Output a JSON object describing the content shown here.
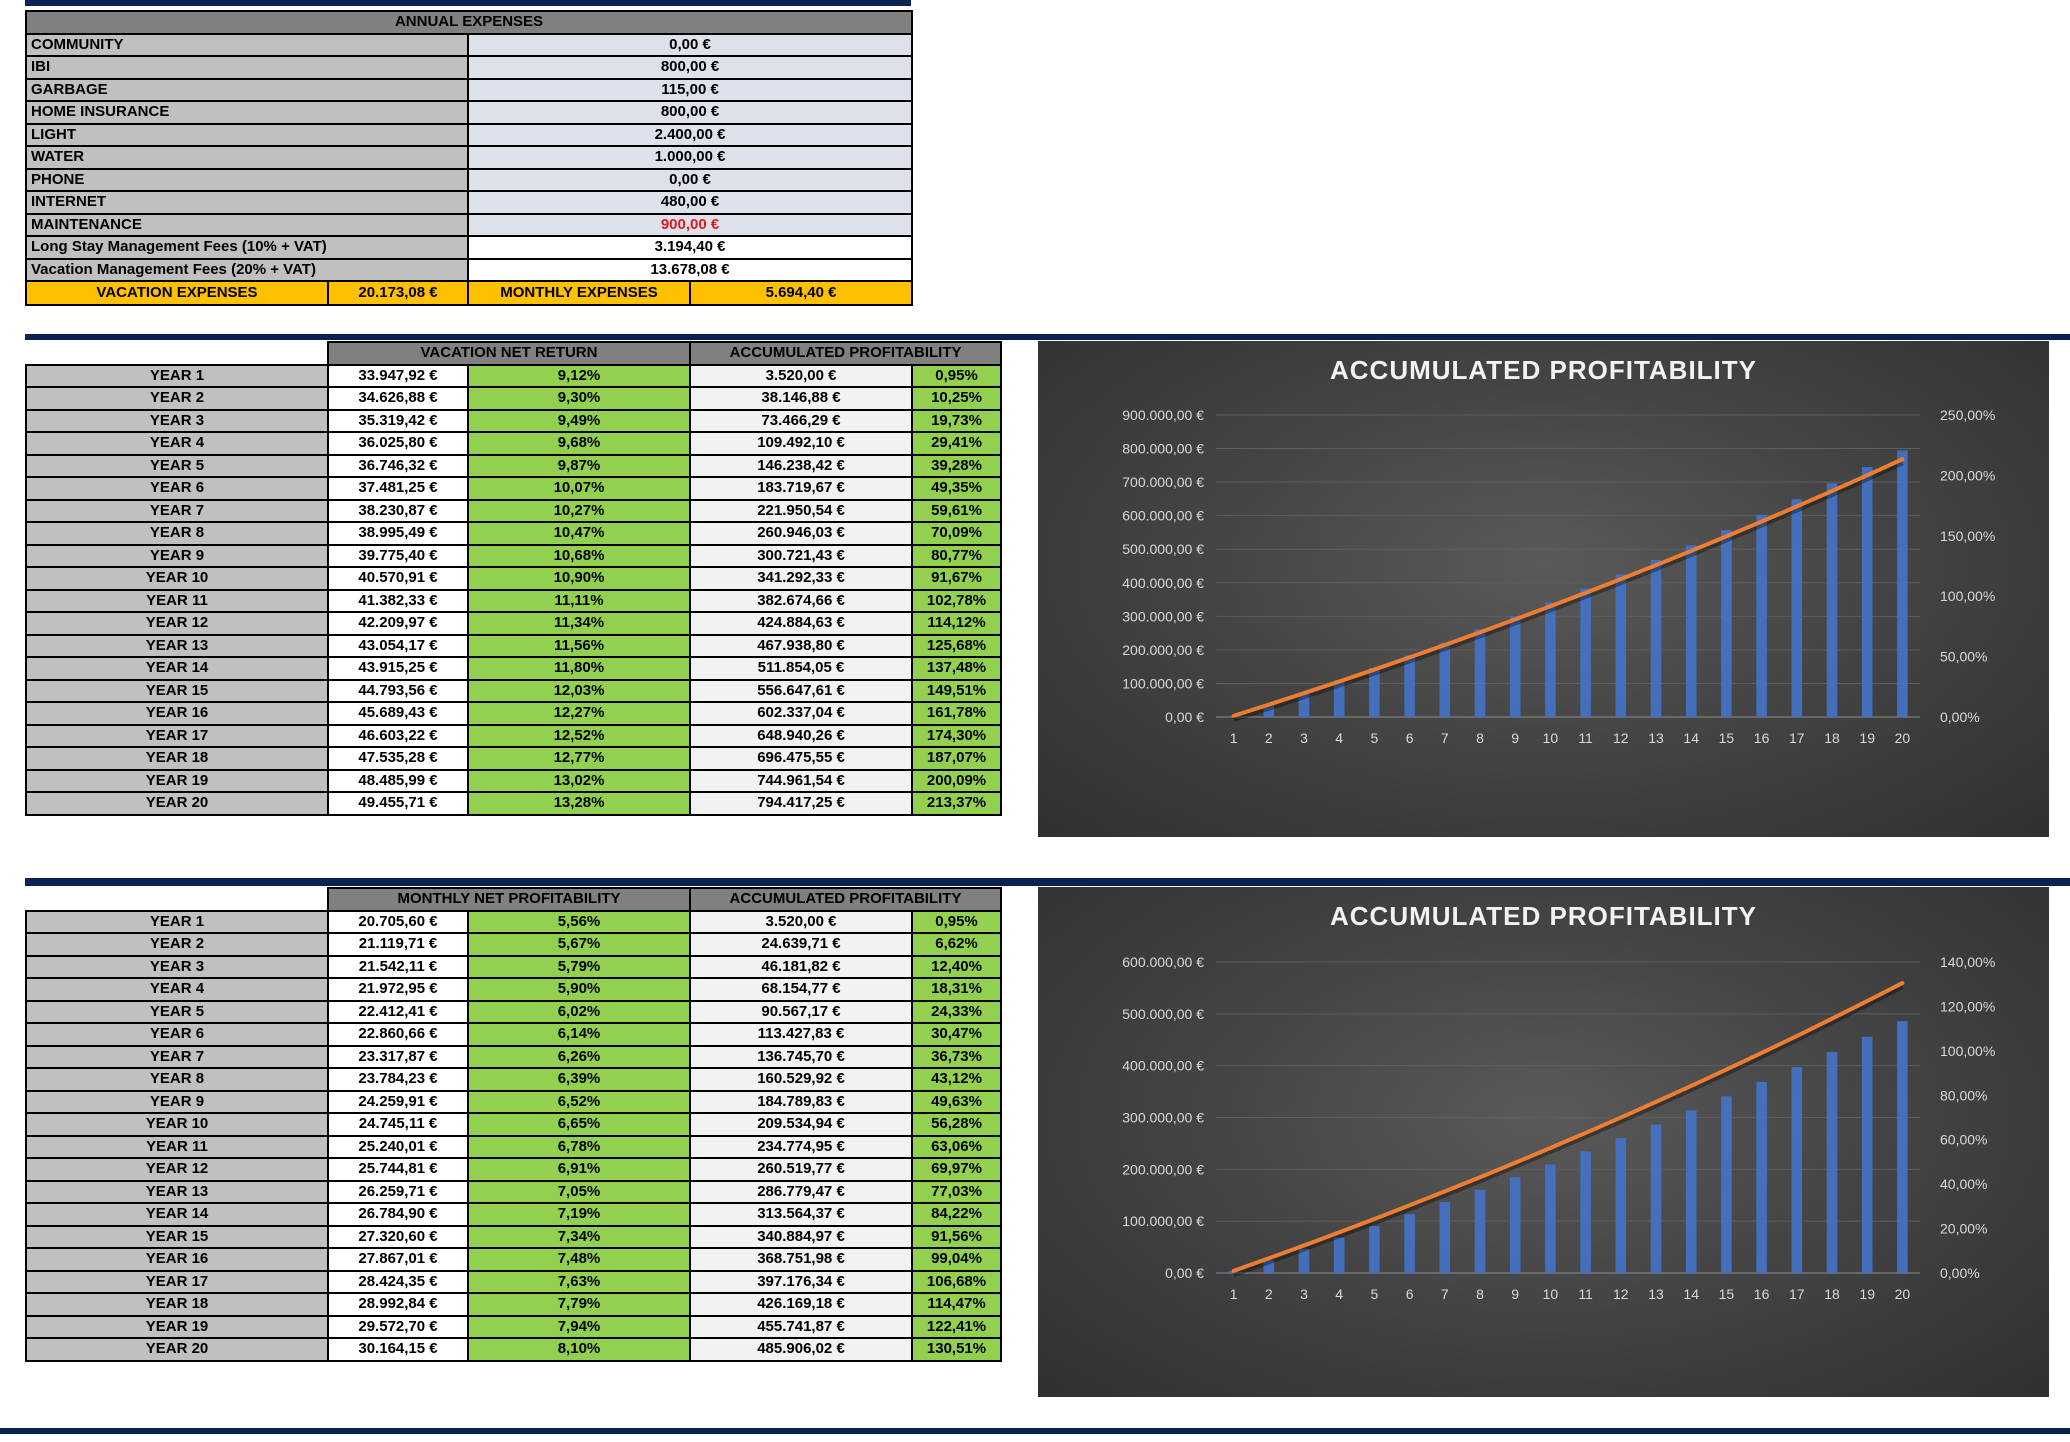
{
  "annual_expenses": {
    "title": "ANNUAL EXPENSES",
    "rows": [
      {
        "label": "COMMUNITY",
        "value": "0,00 €"
      },
      {
        "label": "IBI",
        "value": "800,00 €"
      },
      {
        "label": "GARBAGE",
        "value": "115,00 €"
      },
      {
        "label": "HOME INSURANCE",
        "value": "800,00 €"
      },
      {
        "label": "LIGHT",
        "value": "2.400,00 €"
      },
      {
        "label": "WATER",
        "value": "1.000,00 €"
      },
      {
        "label": "PHONE",
        "value": "0,00 €"
      },
      {
        "label": "INTERNET",
        "value": "480,00 €"
      },
      {
        "label": "MAINTENANCE",
        "value": "900,00 €",
        "color": "#e0191f"
      }
    ],
    "fees": [
      {
        "label": "Long Stay Management Fees (10% + VAT)",
        "value": "3.194,40 €"
      },
      {
        "label": "Vacation Management Fees (20% + VAT)",
        "value": "13.678,08 €"
      }
    ],
    "totals": {
      "vacation_label": "VACATION EXPENSES",
      "vacation_value": "20.173,08 €",
      "monthly_label": "MONTHLY EXPENSES",
      "monthly_value": "5.694,40 €"
    }
  },
  "vacation_table": {
    "header_return": "VACATION NET RETURN",
    "header_accum": "ACCUMULATED PROFITABILITY",
    "rows": [
      [
        "YEAR 1",
        "33.947,92 €",
        "9,12%",
        "3.520,00 €",
        "0,95%"
      ],
      [
        "YEAR 2",
        "34.626,88 €",
        "9,30%",
        "38.146,88 €",
        "10,25%"
      ],
      [
        "YEAR 3",
        "35.319,42 €",
        "9,49%",
        "73.466,29 €",
        "19,73%"
      ],
      [
        "YEAR 4",
        "36.025,80 €",
        "9,68%",
        "109.492,10 €",
        "29,41%"
      ],
      [
        "YEAR 5",
        "36.746,32 €",
        "9,87%",
        "146.238,42 €",
        "39,28%"
      ],
      [
        "YEAR 6",
        "37.481,25 €",
        "10,07%",
        "183.719,67 €",
        "49,35%"
      ],
      [
        "YEAR 7",
        "38.230,87 €",
        "10,27%",
        "221.950,54 €",
        "59,61%"
      ],
      [
        "YEAR 8",
        "38.995,49 €",
        "10,47%",
        "260.946,03 €",
        "70,09%"
      ],
      [
        "YEAR 9",
        "39.775,40 €",
        "10,68%",
        "300.721,43 €",
        "80,77%"
      ],
      [
        "YEAR 10",
        "40.570,91 €",
        "10,90%",
        "341.292,33 €",
        "91,67%"
      ],
      [
        "YEAR 11",
        "41.382,33 €",
        "11,11%",
        "382.674,66 €",
        "102,78%"
      ],
      [
        "YEAR 12",
        "42.209,97 €",
        "11,34%",
        "424.884,63 €",
        "114,12%"
      ],
      [
        "YEAR 13",
        "43.054,17 €",
        "11,56%",
        "467.938,80 €",
        "125,68%"
      ],
      [
        "YEAR 14",
        "43.915,25 €",
        "11,80%",
        "511.854,05 €",
        "137,48%"
      ],
      [
        "YEAR 15",
        "44.793,56 €",
        "12,03%",
        "556.647,61 €",
        "149,51%"
      ],
      [
        "YEAR 16",
        "45.689,43 €",
        "12,27%",
        "602.337,04 €",
        "161,78%"
      ],
      [
        "YEAR 17",
        "46.603,22 €",
        "12,52%",
        "648.940,26 €",
        "174,30%"
      ],
      [
        "YEAR 18",
        "47.535,28 €",
        "12,77%",
        "696.475,55 €",
        "187,07%"
      ],
      [
        "YEAR 19",
        "48.485,99 €",
        "13,02%",
        "744.961,54 €",
        "200,09%"
      ],
      [
        "YEAR 20",
        "49.455,71 €",
        "13,28%",
        "794.417,25 €",
        "213,37%"
      ]
    ]
  },
  "monthly_table": {
    "header_return": "MONTHLY NET PROFITABILITY",
    "header_accum": "ACCUMULATED PROFITABILITY",
    "rows": [
      [
        "YEAR 1",
        "20.705,60 €",
        "5,56%",
        "3.520,00 €",
        "0,95%"
      ],
      [
        "YEAR 2",
        "21.119,71 €",
        "5,67%",
        "24.639,71 €",
        "6,62%"
      ],
      [
        "YEAR 3",
        "21.542,11 €",
        "5,79%",
        "46.181,82 €",
        "12,40%"
      ],
      [
        "YEAR 4",
        "21.972,95 €",
        "5,90%",
        "68.154,77 €",
        "18,31%"
      ],
      [
        "YEAR 5",
        "22.412,41 €",
        "6,02%",
        "90.567,17 €",
        "24,33%"
      ],
      [
        "YEAR 6",
        "22.860,66 €",
        "6,14%",
        "113.427,83 €",
        "30,47%"
      ],
      [
        "YEAR 7",
        "23.317,87 €",
        "6,26%",
        "136.745,70 €",
        "36,73%"
      ],
      [
        "YEAR 8",
        "23.784,23 €",
        "6,39%",
        "160.529,92 €",
        "43,12%"
      ],
      [
        "YEAR 9",
        "24.259,91 €",
        "6,52%",
        "184.789,83 €",
        "49,63%"
      ],
      [
        "YEAR 10",
        "24.745,11 €",
        "6,65%",
        "209.534,94 €",
        "56,28%"
      ],
      [
        "YEAR 11",
        "25.240,01 €",
        "6,78%",
        "234.774,95 €",
        "63,06%"
      ],
      [
        "YEAR 12",
        "25.744,81 €",
        "6,91%",
        "260.519,77 €",
        "69,97%"
      ],
      [
        "YEAR 13",
        "26.259,71 €",
        "7,05%",
        "286.779,47 €",
        "77,03%"
      ],
      [
        "YEAR 14",
        "26.784,90 €",
        "7,19%",
        "313.564,37 €",
        "84,22%"
      ],
      [
        "YEAR 15",
        "27.320,60 €",
        "7,34%",
        "340.884,97 €",
        "91,56%"
      ],
      [
        "YEAR 16",
        "27.867,01 €",
        "7,48%",
        "368.751,98 €",
        "99,04%"
      ],
      [
        "YEAR 17",
        "28.424,35 €",
        "7,63%",
        "397.176,34 €",
        "106,68%"
      ],
      [
        "YEAR 18",
        "28.992,84 €",
        "7,79%",
        "426.169,18 €",
        "114,47%"
      ],
      [
        "YEAR 19",
        "29.572,70 €",
        "7,94%",
        "455.741,87 €",
        "122,41%"
      ],
      [
        "YEAR 20",
        "30.164,15 €",
        "8,10%",
        "485.906,02 €",
        "130,51%"
      ]
    ]
  },
  "chart_data": [
    {
      "type": "bar",
      "title": "ACCUMULATED PROFITABILITY",
      "categories": [
        "1",
        "2",
        "3",
        "4",
        "5",
        "6",
        "7",
        "8",
        "9",
        "10",
        "11",
        "12",
        "13",
        "14",
        "15",
        "16",
        "17",
        "18",
        "19",
        "20"
      ],
      "series": [
        {
          "axis": "left",
          "kind": "bar",
          "color": "#4472c4",
          "values": [
            3520.0,
            38146.88,
            73466.29,
            109492.1,
            146238.42,
            183719.67,
            221950.54,
            260946.03,
            300721.43,
            341292.33,
            382674.66,
            424884.63,
            467938.8,
            511854.05,
            556647.61,
            602337.04,
            648940.26,
            696475.55,
            744961.54,
            794417.25
          ]
        },
        {
          "axis": "right",
          "kind": "line",
          "color": "#ed7d31",
          "values": [
            0.95,
            10.25,
            19.73,
            29.41,
            39.28,
            49.35,
            59.61,
            70.09,
            80.77,
            91.67,
            102.78,
            114.12,
            125.68,
            137.48,
            149.51,
            161.78,
            174.3,
            187.07,
            200.09,
            213.37
          ]
        }
      ],
      "y_left": {
        "min": 0,
        "max": 900000,
        "step": 100000,
        "ticks": [
          "0,00 €",
          "100.000,00 €",
          "200.000,00 €",
          "300.000,00 €",
          "400.000,00 €",
          "500.000,00 €",
          "600.000,00 €",
          "700.000,00 €",
          "800.000,00 €",
          "900.000,00 €"
        ]
      },
      "y_right": {
        "min": 0,
        "max": 250,
        "step": 50,
        "ticks": [
          "0,00%",
          "50,00%",
          "100,00%",
          "150,00%",
          "200,00%",
          "250,00%"
        ]
      },
      "grid": true,
      "legend": "none"
    },
    {
      "type": "bar",
      "title": "ACCUMULATED PROFITABILITY",
      "categories": [
        "1",
        "2",
        "3",
        "4",
        "5",
        "6",
        "7",
        "8",
        "9",
        "10",
        "11",
        "12",
        "13",
        "14",
        "15",
        "16",
        "17",
        "18",
        "19",
        "20"
      ],
      "series": [
        {
          "axis": "left",
          "kind": "bar",
          "color": "#4472c4",
          "values": [
            3520.0,
            24639.71,
            46181.82,
            68154.77,
            90567.17,
            113427.83,
            136745.7,
            160529.92,
            184789.83,
            209534.94,
            234774.95,
            260519.77,
            286779.47,
            313564.37,
            340884.97,
            368751.98,
            397176.34,
            426169.18,
            455741.87,
            485906.02
          ]
        },
        {
          "axis": "right",
          "kind": "line",
          "color": "#ed7d31",
          "values": [
            0.95,
            6.62,
            12.4,
            18.31,
            24.33,
            30.47,
            36.73,
            43.12,
            49.63,
            56.28,
            63.06,
            69.97,
            77.03,
            84.22,
            91.56,
            99.04,
            106.68,
            114.47,
            122.41,
            130.51
          ]
        }
      ],
      "y_left": {
        "min": 0,
        "max": 600000,
        "step": 100000,
        "ticks": [
          "0,00 €",
          "100.000,00 €",
          "200.000,00 €",
          "300.000,00 €",
          "400.000,00 €",
          "500.000,00 €",
          "600.000,00 €"
        ]
      },
      "y_right": {
        "min": 0,
        "max": 140,
        "step": 20,
        "ticks": [
          "0,00%",
          "20,00%",
          "40,00%",
          "60,00%",
          "80,00%",
          "100,00%",
          "120,00%",
          "140,00%"
        ]
      },
      "grid": true,
      "legend": "none"
    }
  ]
}
